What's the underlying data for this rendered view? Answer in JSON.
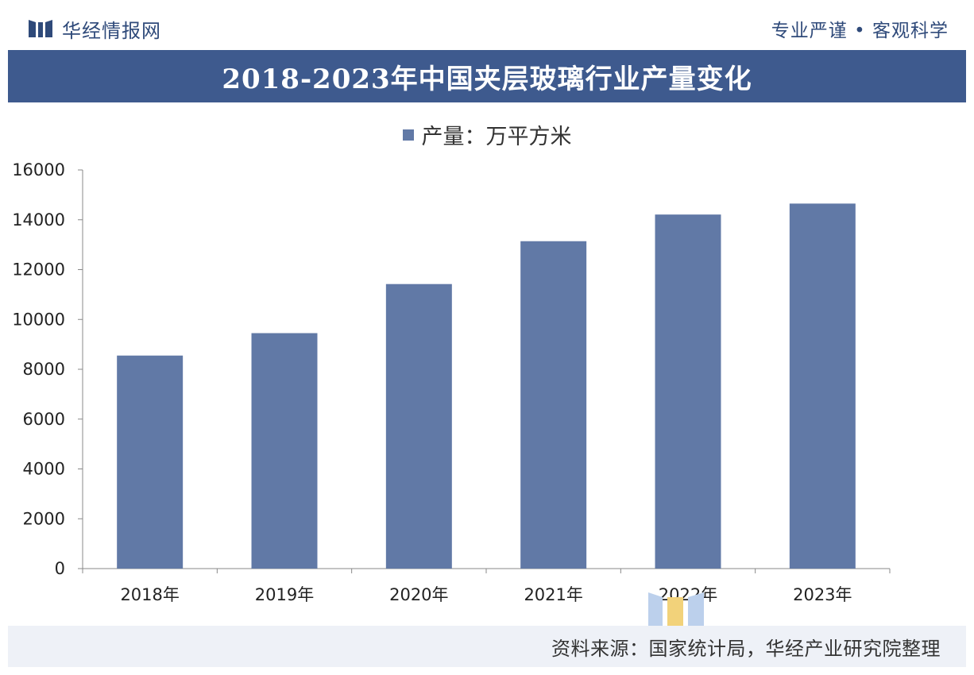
{
  "header": {
    "brand_name": "华经情报网",
    "slogan": "专业严谨 • 客观科学"
  },
  "footer": {
    "source": "资料来源：国家统计局，华经产业研究院整理"
  },
  "colors": {
    "title_band": "#3e5a8e",
    "bar": "#6179a6",
    "brand": "#2f4a7a",
    "footer_band": "#eef1f7"
  },
  "chart_data": {
    "type": "bar",
    "title": "2018-2023年中国夹层玻璃行业产量变化",
    "categories": [
      "2018年",
      "2019年",
      "2020年",
      "2021年",
      "2022年",
      "2023年"
    ],
    "series": [
      {
        "name": "产量：万平方米",
        "values": [
          8550,
          9450,
          11420,
          13140,
          14210,
          14650
        ]
      }
    ],
    "xlabel": "",
    "ylabel": "",
    "ylim": [
      0,
      16000
    ],
    "yticks": [
      0,
      2000,
      4000,
      6000,
      8000,
      10000,
      12000,
      14000,
      16000
    ],
    "legend_position": "top-center",
    "grid": false
  }
}
